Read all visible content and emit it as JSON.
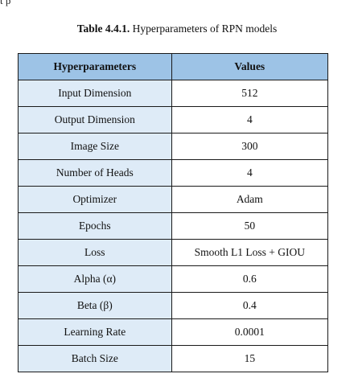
{
  "top_fragment": "t    p",
  "caption": {
    "label": "Table 4.4.1.",
    "text": " Hyperparameters of RPN models"
  },
  "table": {
    "headers": [
      "Hyperparameters",
      "Values"
    ],
    "rows": [
      {
        "name": "Input Dimension",
        "value": "512"
      },
      {
        "name": "Output Dimension",
        "value": "4"
      },
      {
        "name": "Image Size",
        "value": "300"
      },
      {
        "name": "Number of Heads",
        "value": "4"
      },
      {
        "name": "Optimizer",
        "value": "Adam"
      },
      {
        "name": "Epochs",
        "value": "50"
      },
      {
        "name": "Loss",
        "value": "Smooth L1 Loss + GIOU"
      },
      {
        "name": "Alpha (α)",
        "value": "0.6"
      },
      {
        "name": "Beta (β)",
        "value": "0.4"
      },
      {
        "name": "Learning Rate",
        "value": "0.0001"
      },
      {
        "name": "Batch Size",
        "value": "15"
      }
    ]
  },
  "colors": {
    "header_bg": "#9dc3e6",
    "name_col_bg": "#deebf7",
    "border": "#1a1a1a"
  }
}
